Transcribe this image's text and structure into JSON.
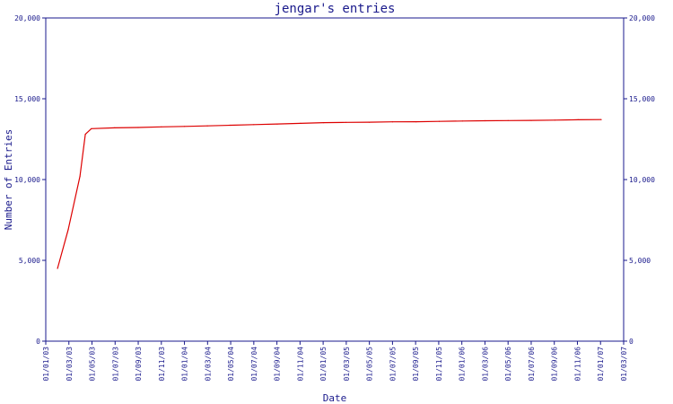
{
  "chart_data": {
    "type": "line",
    "title": "jengar's entries",
    "xlabel": "Date",
    "ylabel": "Number of Entries",
    "ylim": [
      0,
      20000
    ],
    "yticks": [
      0,
      5000,
      10000,
      15000,
      20000
    ],
    "ytick_labels": [
      "0",
      "5,000",
      "10,000",
      "15,000",
      "20,000"
    ],
    "xlim": [
      "2003-01-01",
      "2007-03-01"
    ],
    "x_tick_labels": [
      "01/01/03",
      "01/03/03",
      "01/05/03",
      "01/07/03",
      "01/09/03",
      "01/11/03",
      "01/01/04",
      "01/03/04",
      "01/05/04",
      "01/07/04",
      "01/09/04",
      "01/11/04",
      "01/01/05",
      "01/03/05",
      "01/05/05",
      "01/07/05",
      "01/09/05",
      "01/11/05",
      "01/01/06",
      "01/03/06",
      "01/05/06",
      "01/07/06",
      "01/09/06",
      "01/11/06",
      "01/01/07",
      "01/03/07"
    ],
    "grid": false,
    "series": [
      {
        "color": "#dd0000",
        "points": [
          [
            "2003-02-01",
            4500
          ],
          [
            "2003-03-01",
            6900
          ],
          [
            "2003-04-01",
            10200
          ],
          [
            "2003-04-15",
            12800
          ],
          [
            "2003-05-01",
            13150
          ],
          [
            "2003-07-01",
            13200
          ],
          [
            "2003-09-01",
            13220
          ],
          [
            "2003-11-01",
            13260
          ],
          [
            "2004-01-01",
            13290
          ],
          [
            "2004-03-01",
            13320
          ],
          [
            "2004-05-01",
            13360
          ],
          [
            "2004-07-01",
            13400
          ],
          [
            "2004-09-01",
            13440
          ],
          [
            "2004-11-01",
            13480
          ],
          [
            "2005-01-01",
            13520
          ],
          [
            "2005-03-01",
            13540
          ],
          [
            "2005-05-01",
            13550
          ],
          [
            "2005-07-01",
            13570
          ],
          [
            "2005-09-01",
            13580
          ],
          [
            "2005-11-01",
            13600
          ],
          [
            "2006-01-01",
            13620
          ],
          [
            "2006-03-01",
            13640
          ],
          [
            "2006-05-01",
            13650
          ],
          [
            "2006-07-01",
            13660
          ],
          [
            "2006-09-01",
            13680
          ],
          [
            "2006-11-01",
            13700
          ],
          [
            "2007-01-01",
            13710
          ]
        ]
      }
    ]
  }
}
